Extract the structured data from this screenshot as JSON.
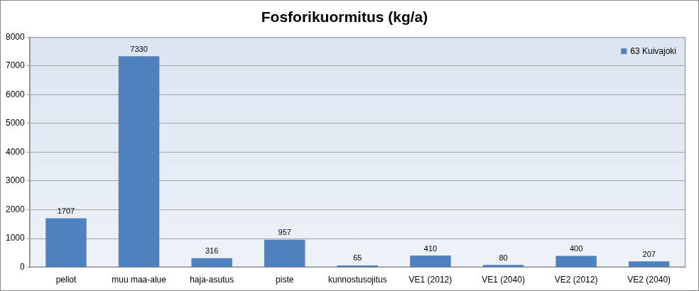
{
  "chart_data": {
    "type": "bar",
    "title": "Fosforikuormitus (kg/a)",
    "categories": [
      "pellot",
      "muu maa-alue",
      "haja-asutus",
      "piste",
      "kunnostusojitus",
      "VE1 (2012)",
      "VE1 (2040)",
      "VE2 (2012)",
      "VE2 (2040)"
    ],
    "series": [
      {
        "name": "63 Kuivajoki",
        "color": "#4f81bd",
        "values": [
          1707,
          7330,
          316,
          957,
          65,
          410,
          80,
          400,
          207
        ]
      }
    ],
    "ylim": [
      0,
      8000
    ],
    "yticks": [
      0,
      1000,
      2000,
      3000,
      4000,
      5000,
      6000,
      7000,
      8000
    ],
    "grid": true,
    "legend": "top-right",
    "data_labels": true
  }
}
